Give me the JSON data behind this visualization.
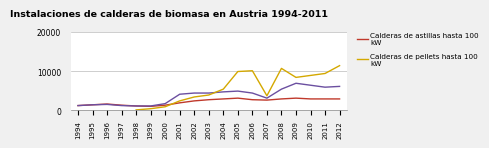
{
  "title": "Instalaciones de calderas de biomasa en Austria 1994-2011",
  "years": [
    1994,
    1995,
    1996,
    1997,
    1998,
    1999,
    2000,
    2001,
    2002,
    2003,
    2004,
    2005,
    2006,
    2007,
    2008,
    2009,
    2010,
    2011,
    2012
  ],
  "red_line": [
    1200,
    1400,
    1600,
    1300,
    1100,
    1000,
    1300,
    1900,
    2400,
    2700,
    2900,
    3100,
    2700,
    2600,
    2900,
    3100,
    2900,
    2900,
    2900
  ],
  "purple_line": [
    1200,
    1400,
    1500,
    1200,
    1100,
    1100,
    1700,
    4100,
    4400,
    4400,
    4700,
    4900,
    4400,
    3100,
    5400,
    6900,
    6400,
    5900,
    6100
  ],
  "yellow_line": [
    null,
    null,
    null,
    null,
    100,
    400,
    900,
    2400,
    3400,
    3900,
    5400,
    9900,
    10100,
    3700,
    10700,
    8400,
    8900,
    9400,
    11400
  ],
  "red_color": "#c0392b",
  "purple_color": "#6b4fa0",
  "yellow_color": "#d4a800",
  "legend_red": "Calderas de astillas hasta 100\nkW",
  "legend_yellow": "Calderas de pellets hasta 100\nkW",
  "ylim": [
    0,
    20000
  ],
  "yticks": [
    0,
    10000,
    20000
  ],
  "background_color": "#f0f0f0",
  "plot_bg_color": "#ffffff"
}
